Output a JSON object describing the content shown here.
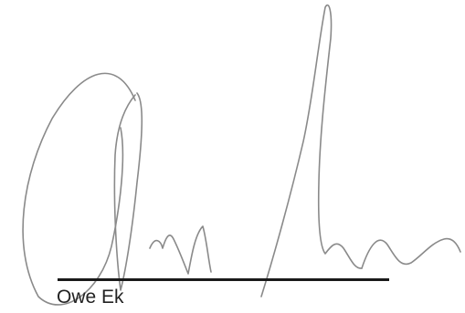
{
  "signature": {
    "signer_name": "Owe Ek",
    "ink_color": "#8a8a8a",
    "line_color": "#1a1a1a"
  }
}
